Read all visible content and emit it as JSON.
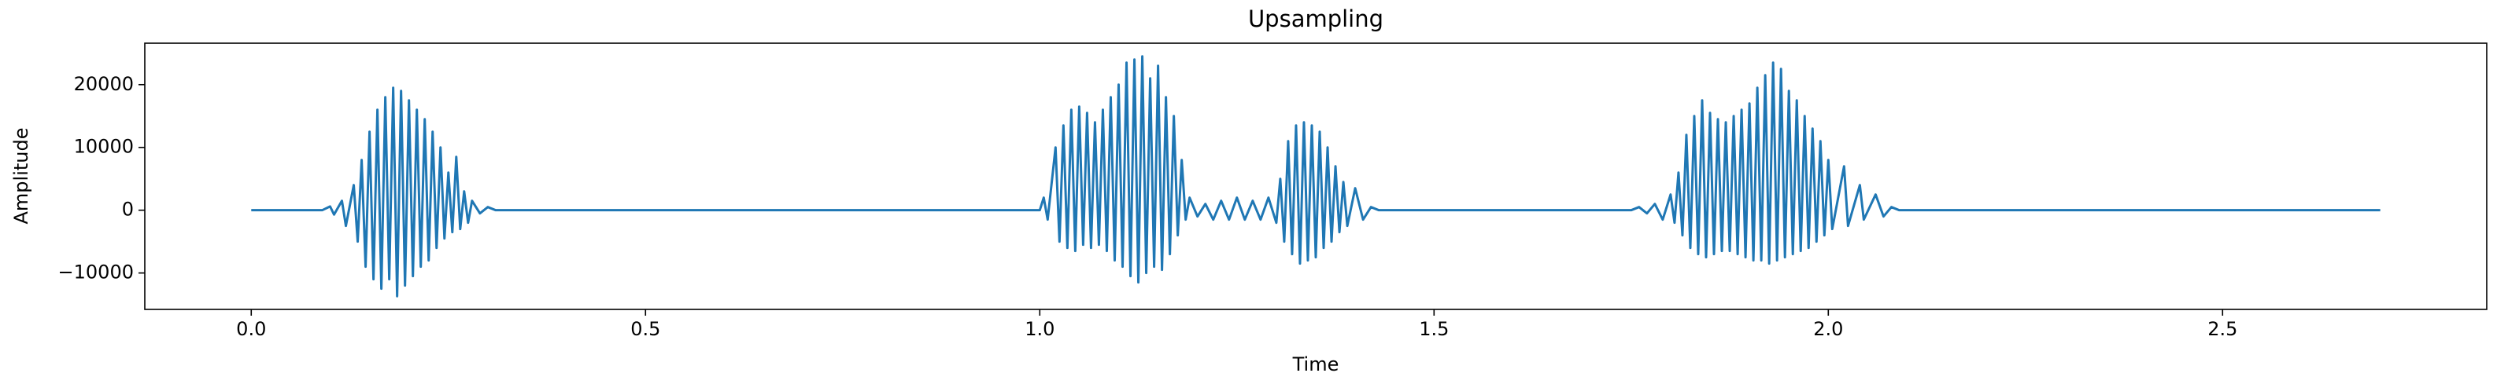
{
  "chart_data": {
    "type": "line",
    "title": "Upsampling",
    "xlabel": "Time",
    "ylabel": "Amplitude",
    "color": "#1f77b4",
    "x": [
      0,
      0.09,
      0.1,
      0.105,
      0.115,
      0.12,
      0.13,
      0.135,
      0.14,
      0.145,
      0.15,
      0.155,
      0.16,
      0.165,
      0.17,
      0.175,
      0.18,
      0.185,
      0.19,
      0.195,
      0.2,
      0.205,
      0.21,
      0.215,
      0.22,
      0.225,
      0.23,
      0.235,
      0.24,
      0.245,
      0.25,
      0.255,
      0.26,
      0.265,
      0.27,
      0.275,
      0.28,
      0.29,
      0.3,
      0.31,
      1.0,
      1.005,
      1.01,
      1.02,
      1.025,
      1.03,
      1.035,
      1.04,
      1.045,
      1.05,
      1.055,
      1.06,
      1.065,
      1.07,
      1.075,
      1.08,
      1.085,
      1.09,
      1.095,
      1.1,
      1.105,
      1.11,
      1.115,
      1.12,
      1.125,
      1.13,
      1.135,
      1.14,
      1.145,
      1.15,
      1.155,
      1.16,
      1.165,
      1.17,
      1.175,
      1.18,
      1.185,
      1.19,
      1.2,
      1.21,
      1.22,
      1.23,
      1.24,
      1.25,
      1.26,
      1.27,
      1.28,
      1.29,
      1.3,
      1.305,
      1.31,
      1.315,
      1.32,
      1.325,
      1.33,
      1.335,
      1.34,
      1.345,
      1.35,
      1.355,
      1.36,
      1.365,
      1.37,
      1.375,
      1.38,
      1.385,
      1.39,
      1.4,
      1.41,
      1.42,
      1.43,
      1.75,
      1.76,
      1.77,
      1.78,
      1.79,
      1.8,
      1.805,
      1.81,
      1.815,
      1.82,
      1.825,
      1.83,
      1.835,
      1.84,
      1.845,
      1.85,
      1.855,
      1.86,
      1.865,
      1.87,
      1.875,
      1.88,
      1.885,
      1.89,
      1.895,
      1.9,
      1.905,
      1.91,
      1.915,
      1.92,
      1.925,
      1.93,
      1.935,
      1.94,
      1.945,
      1.95,
      1.955,
      1.96,
      1.965,
      1.97,
      1.975,
      1.98,
      1.985,
      1.99,
      1.995,
      2.0,
      2.005,
      2.02,
      2.025,
      2.04,
      2.045,
      2.06,
      2.07,
      2.08,
      2.09,
      2.7
    ],
    "values": [
      0,
      0,
      600,
      -700,
      1500,
      -2500,
      4000,
      -5000,
      8000,
      -9000,
      12500,
      -11000,
      16000,
      -12500,
      18000,
      -11000,
      19500,
      -13700,
      19000,
      -12000,
      17500,
      -10500,
      16000,
      -9000,
      14500,
      -8000,
      12500,
      -6000,
      10000,
      -4500,
      6000,
      -3500,
      8500,
      -3000,
      3000,
      -2000,
      1500,
      -500,
      500,
      0,
      0,
      2000,
      -1500,
      10000,
      -5000,
      13500,
      -6000,
      16000,
      -6500,
      16500,
      -5500,
      15500,
      -6000,
      14000,
      -5500,
      16000,
      -6500,
      18000,
      -8000,
      20000,
      -9000,
      23500,
      -10500,
      24000,
      -11500,
      24500,
      -10000,
      21000,
      -9000,
      23000,
      -9500,
      18000,
      -7000,
      15000,
      -4000,
      8000,
      -1500,
      2000,
      -1000,
      1000,
      -1500,
      1500,
      -1500,
      2000,
      -1500,
      1500,
      -1500,
      2000,
      -2000,
      5000,
      -5000,
      11000,
      -7000,
      13500,
      -8500,
      14000,
      -8000,
      13500,
      -7500,
      12500,
      -6000,
      10000,
      -5000,
      7000,
      -3500,
      4500,
      -2500,
      3500,
      -1500,
      500,
      0,
      0,
      500,
      -500,
      1000,
      -1500,
      2500,
      -2000,
      6000,
      -4000,
      12000,
      -6000,
      15000,
      -7000,
      17500,
      -7500,
      15500,
      -7000,
      14500,
      -6500,
      14000,
      -6500,
      15000,
      -7000,
      16000,
      -7500,
      17000,
      -8000,
      19500,
      -8000,
      21500,
      -8500,
      23500,
      -8000,
      22500,
      -7500,
      19000,
      -7000,
      17500,
      -6500,
      15000,
      -6000,
      13000,
      -5000,
      11000,
      -4000,
      8000,
      -3000,
      7000,
      -2500,
      4000,
      -1500,
      2500,
      -1000,
      500,
      0,
      0
    ],
    "xlim": [
      -0.135,
      2.835
    ],
    "ylim": [
      -15800,
      26600
    ],
    "xticks": [
      {
        "value": 0,
        "label": "0.0"
      },
      0.5,
      {
        "value": 1,
        "label": "1.0"
      },
      1.5,
      {
        "value": 2,
        "label": "2.0"
      },
      2.5
    ],
    "yticks": [
      {
        "value": -10000,
        "label": "−10000"
      },
      0,
      10000,
      20000
    ]
  }
}
